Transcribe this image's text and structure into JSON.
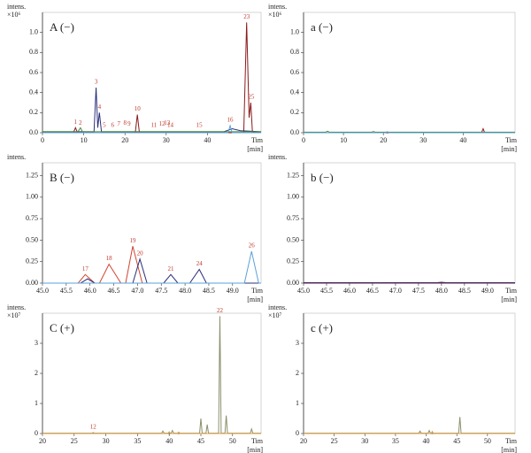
{
  "chart_data": [
    {
      "type": "line",
      "title": "A (−)",
      "y_label": "intens.",
      "y_scale": "×10⁶",
      "x_label": "Tim",
      "x_unit": "[min]",
      "xlim": [
        0,
        53
      ],
      "xticks": [
        0,
        10,
        20,
        30,
        40
      ],
      "ylim": [
        0,
        1.2
      ],
      "yticks": [
        {
          "value": 0,
          "label": "0.0"
        },
        {
          "value": 0.2,
          "label": "0.2"
        },
        {
          "value": 0.4,
          "label": "0.4"
        },
        {
          "value": 0.6,
          "label": "0.6"
        },
        {
          "value": 0.8,
          "label": "0.8"
        },
        {
          "value": 1,
          "label": "1.0"
        }
      ],
      "annotation_color": "#c0392b",
      "annotations": [
        {
          "text": "1",
          "x": 8,
          "y": 0.05
        },
        {
          "text": "2",
          "x": 9.2,
          "y": 0.04
        },
        {
          "text": "3",
          "x": 13,
          "y": 0.45
        },
        {
          "text": "4",
          "x": 13.8,
          "y": 0.2
        },
        {
          "text": "5",
          "x": 15,
          "y": 0.02
        },
        {
          "text": "6",
          "x": 17,
          "y": 0.02
        },
        {
          "text": "7",
          "x": 18.5,
          "y": 0.03
        },
        {
          "text": "8",
          "x": 20,
          "y": 0.04
        },
        {
          "text": "9",
          "x": 21,
          "y": 0.03
        },
        {
          "text": "10",
          "x": 23,
          "y": 0.18
        },
        {
          "text": "11",
          "x": 27,
          "y": 0.02
        },
        {
          "text": "12",
          "x": 29,
          "y": 0.03
        },
        {
          "text": "13",
          "x": 30.2,
          "y": 0.04
        },
        {
          "text": "14",
          "x": 31,
          "y": 0.02
        },
        {
          "text": "15",
          "x": 38,
          "y": 0.02
        },
        {
          "text": "16",
          "x": 45.5,
          "y": 0.07
        },
        {
          "text": "23",
          "x": 49.5,
          "y": 1.1
        },
        {
          "text": "25",
          "x": 50.6,
          "y": 0.3
        }
      ],
      "series": [
        {
          "color": "#8b1a1a",
          "x": [
            0,
            7.5,
            8,
            8.5,
            22.5,
            23,
            23.5,
            48.8,
            49.5,
            50.1,
            50.5,
            50.9,
            53
          ],
          "values": [
            0,
            0,
            0.05,
            0,
            0,
            0.18,
            0,
            0,
            1.1,
            0.15,
            0.3,
            0.01,
            0
          ]
        },
        {
          "color": "#2b2f7a",
          "x": [
            0,
            12.5,
            13,
            13.4,
            13.8,
            14.3,
            44,
            46,
            48,
            53
          ],
          "values": [
            0.01,
            0.01,
            0.45,
            0.05,
            0.2,
            0.01,
            0.01,
            0.04,
            0.02,
            0.01
          ]
        },
        {
          "color": "#4a8a3a",
          "x": [
            0,
            8.6,
            9.2,
            9.7,
            53
          ],
          "values": [
            0.01,
            0.01,
            0.05,
            0.01,
            0.01
          ]
        },
        {
          "color": "#5aa0d8",
          "x": [
            0,
            45,
            45.5,
            46,
            53
          ],
          "values": [
            0,
            0,
            0.07,
            0,
            0
          ]
        }
      ]
    },
    {
      "type": "line",
      "title": "a (−)",
      "y_label": "intens.",
      "y_scale": "×10⁶",
      "x_label": "Tim",
      "x_unit": "[min]",
      "xlim": [
        0,
        53
      ],
      "xticks": [
        0,
        10,
        20,
        30,
        40
      ],
      "ylim": [
        0,
        1.2
      ],
      "yticks": [
        {
          "value": 0,
          "label": "0.0"
        },
        {
          "value": 0.2,
          "label": "0.2"
        },
        {
          "value": 0.4,
          "label": "0.4"
        },
        {
          "value": 0.6,
          "label": "0.6"
        },
        {
          "value": 0.8,
          "label": "0.8"
        },
        {
          "value": 1,
          "label": "1.0"
        }
      ],
      "series": [
        {
          "color": "#8b1a1a",
          "x": [
            0,
            44.6,
            45,
            45.4,
            53
          ],
          "values": [
            0,
            0,
            0.04,
            0,
            0
          ]
        },
        {
          "color": "#4a8a3a",
          "x": [
            0,
            5.5,
            6,
            6.5,
            17,
            17.5,
            18,
            53
          ],
          "values": [
            0.005,
            0.005,
            0.015,
            0.005,
            0.005,
            0.012,
            0.005,
            0.005
          ]
        },
        {
          "color": "#5aa0d8",
          "x": [
            0,
            20.5,
            21,
            21.5,
            53
          ],
          "values": [
            0,
            0,
            0.01,
            0,
            0
          ]
        }
      ]
    },
    {
      "type": "line",
      "title": "B (−)",
      "y_label": "intens.",
      "x_label": "Tim",
      "x_unit": "[min]",
      "xlim": [
        45,
        49.6
      ],
      "xticks": [
        {
          "value": 45,
          "label": "45.0"
        },
        {
          "value": 45.5,
          "label": "45.5"
        },
        {
          "value": 46,
          "label": "46.0"
        },
        {
          "value": 46.5,
          "label": "46.5"
        },
        {
          "value": 47,
          "label": "47.0"
        },
        {
          "value": 47.5,
          "label": "47.5"
        },
        {
          "value": 48,
          "label": "48.0"
        },
        {
          "value": 48.5,
          "label": "48.5"
        },
        {
          "value": 49,
          "label": "49.0"
        }
      ],
      "ylim": [
        0,
        1.4
      ],
      "yticks": [
        {
          "value": 0,
          "label": "0.00"
        },
        {
          "value": 0.25,
          "label": "0.25"
        },
        {
          "value": 0.5,
          "label": "0.50"
        },
        {
          "value": 0.75,
          "label": "0.75"
        },
        {
          "value": 1,
          "label": "1.00"
        },
        {
          "value": 1.25,
          "label": "1.25"
        }
      ],
      "annotation_color": "#c0392b",
      "annotations": [
        {
          "text": "17",
          "x": 45.9,
          "y": 0.1
        },
        {
          "text": "18",
          "x": 46.4,
          "y": 0.22
        },
        {
          "text": "19",
          "x": 46.9,
          "y": 0.43
        },
        {
          "text": "20",
          "x": 47.05,
          "y": 0.28
        },
        {
          "text": "21",
          "x": 47.7,
          "y": 0.1
        },
        {
          "text": "24",
          "x": 48.3,
          "y": 0.16
        },
        {
          "text": "26",
          "x": 49.4,
          "y": 0.37
        }
      ],
      "series": [
        {
          "color": "#d0452f",
          "x": [
            45,
            45.75,
            45.9,
            46.1,
            46.2,
            46.4,
            46.65,
            46.75,
            46.9,
            47.1,
            49.6
          ],
          "values": [
            0,
            0,
            0.1,
            0,
            0,
            0.22,
            0,
            0,
            0.43,
            0,
            0
          ]
        },
        {
          "color": "#2b2f7a",
          "x": [
            45,
            45.8,
            45.95,
            46.1,
            46.9,
            47.05,
            47.2,
            47.55,
            47.7,
            47.85,
            48.1,
            48.3,
            48.45,
            49.6
          ],
          "values": [
            0,
            0,
            0.05,
            0,
            0,
            0.28,
            0,
            0,
            0.1,
            0,
            0,
            0.16,
            0,
            0
          ]
        },
        {
          "color": "#5aa0d8",
          "x": [
            45,
            49.25,
            49.4,
            49.55,
            49.6
          ],
          "values": [
            0,
            0,
            0.37,
            0,
            0
          ]
        }
      ]
    },
    {
      "type": "line",
      "title": "b (−)",
      "y_label": "intens.",
      "x_label": "Tim",
      "x_unit": "[min]",
      "xlim": [
        45,
        49.6
      ],
      "xticks": [
        {
          "value": 45,
          "label": "45.0"
        },
        {
          "value": 45.5,
          "label": "45.5"
        },
        {
          "value": 46,
          "label": "46.0"
        },
        {
          "value": 46.5,
          "label": "46.5"
        },
        {
          "value": 47,
          "label": "47.0"
        },
        {
          "value": 47.5,
          "label": "47.5"
        },
        {
          "value": 48,
          "label": "48.0"
        },
        {
          "value": 48.5,
          "label": "48.5"
        },
        {
          "value": 49,
          "label": "49.0"
        }
      ],
      "ylim": [
        0,
        1.4
      ],
      "yticks": [
        {
          "value": 0,
          "label": "0.00"
        },
        {
          "value": 0.25,
          "label": "0.25"
        },
        {
          "value": 0.5,
          "label": "0.50"
        },
        {
          "value": 0.75,
          "label": "0.75"
        },
        {
          "value": 1,
          "label": "1.00"
        },
        {
          "value": 1.25,
          "label": "1.25"
        }
      ],
      "series": [
        {
          "color": "#8b1a1a",
          "x": [
            45,
            49.6
          ],
          "values": [
            0,
            0
          ]
        },
        {
          "color": "#2b2f7a",
          "x": [
            45,
            47.9,
            48,
            48.1,
            49.6
          ],
          "values": [
            0.005,
            0.005,
            0.01,
            0.005,
            0.005
          ]
        }
      ]
    },
    {
      "type": "line",
      "title": "C (+)",
      "y_label": "intens.",
      "y_scale": "×10⁷",
      "x_label": "Tim",
      "x_unit": "[min]",
      "xlim": [
        20,
        54.5
      ],
      "xticks": [
        20,
        25,
        30,
        35,
        40,
        45,
        50
      ],
      "ylim": [
        0,
        4
      ],
      "yticks": [
        0,
        1,
        2,
        3
      ],
      "annotation_color": "#c0392b",
      "annotations": [
        {
          "text": "12",
          "x": 28,
          "y": 0.03
        },
        {
          "text": "22",
          "x": 48,
          "y": 3.9
        }
      ],
      "series": [
        {
          "color": "#8a8f6a",
          "x": [
            20,
            27.8,
            28,
            28.2,
            38.8,
            39,
            39.2,
            40.3,
            40.5,
            40.7,
            44.8,
            45,
            45.2,
            45.8,
            46,
            46.2,
            47.8,
            48,
            48.2,
            48.8,
            49,
            49.2,
            52.8,
            53,
            53.2,
            54.5
          ],
          "values": [
            0.01,
            0.01,
            0.03,
            0.01,
            0.01,
            0.08,
            0.01,
            0.01,
            0.1,
            0.01,
            0.01,
            0.5,
            0.01,
            0.01,
            0.3,
            0.01,
            0.01,
            3.9,
            0.01,
            0.01,
            0.6,
            0.01,
            0.01,
            0.15,
            0.01,
            0.01
          ]
        },
        {
          "color": "#e0a040",
          "x": [
            20,
            39.8,
            40,
            40.2,
            41.3,
            41.5,
            41.7,
            54.5
          ],
          "values": [
            0,
            0,
            0.06,
            0,
            0,
            0.05,
            0,
            0
          ]
        }
      ]
    },
    {
      "type": "line",
      "title": "c (+)",
      "y_label": "intens.",
      "y_scale": "×10⁷",
      "x_label": "Tim",
      "x_unit": "[min]",
      "xlim": [
        20,
        54.5
      ],
      "xticks": [
        20,
        25,
        30,
        35,
        40,
        45,
        50
      ],
      "ylim": [
        0,
        4
      ],
      "yticks": [
        0,
        1,
        2,
        3
      ],
      "series": [
        {
          "color": "#8a8f6a",
          "x": [
            20,
            38.8,
            39,
            39.2,
            40.3,
            40.5,
            40.7,
            45.3,
            45.5,
            45.7,
            54.5
          ],
          "values": [
            0.01,
            0.01,
            0.08,
            0.01,
            0.01,
            0.1,
            0.01,
            0.01,
            0.55,
            0.01,
            0.01
          ]
        },
        {
          "color": "#e0a040",
          "x": [
            20,
            40.8,
            41,
            41.2,
            54.5
          ],
          "values": [
            0,
            0,
            0.07,
            0,
            0
          ]
        }
      ]
    }
  ]
}
